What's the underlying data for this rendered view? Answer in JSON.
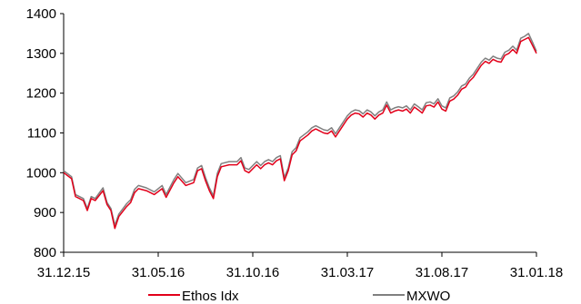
{
  "chart_data": {
    "type": "line",
    "title": "",
    "xlabel": "",
    "ylabel": "",
    "ylim": [
      800,
      1400
    ],
    "yticks": [
      800,
      900,
      1000,
      1100,
      1200,
      1300,
      1400
    ],
    "xticks": [
      "31.12.15",
      "31.05.16",
      "31.10.16",
      "31.03.17",
      "31.08.17",
      "31.01.18"
    ],
    "grid": false,
    "legend_position": "bottom",
    "series": [
      {
        "name": "Ethos Idx",
        "color": "#e2001a",
        "points": [
          [
            0,
            1000
          ],
          [
            2,
            985
          ],
          [
            3,
            940
          ],
          [
            5,
            930
          ],
          [
            6,
            905
          ],
          [
            7,
            935
          ],
          [
            8,
            930
          ],
          [
            10,
            955
          ],
          [
            11,
            920
          ],
          [
            12,
            905
          ],
          [
            13,
            860
          ],
          [
            14,
            890
          ],
          [
            16,
            915
          ],
          [
            17,
            925
          ],
          [
            18,
            950
          ],
          [
            19,
            960
          ],
          [
            21,
            955
          ],
          [
            23,
            945
          ],
          [
            25,
            960
          ],
          [
            26,
            938
          ],
          [
            28,
            975
          ],
          [
            29,
            990
          ],
          [
            31,
            968
          ],
          [
            33,
            975
          ],
          [
            34,
            1005
          ],
          [
            35,
            1010
          ],
          [
            36,
            980
          ],
          [
            37,
            955
          ],
          [
            38,
            935
          ],
          [
            39,
            990
          ],
          [
            40,
            1015
          ],
          [
            42,
            1020
          ],
          [
            44,
            1020
          ],
          [
            45,
            1030
          ],
          [
            46,
            1005
          ],
          [
            47,
            1000
          ],
          [
            49,
            1020
          ],
          [
            50,
            1010
          ],
          [
            51,
            1020
          ],
          [
            52,
            1025
          ],
          [
            53,
            1020
          ],
          [
            54,
            1030
          ],
          [
            55,
            1035
          ],
          [
            56,
            980
          ],
          [
            57,
            1005
          ],
          [
            58,
            1045
          ],
          [
            59,
            1055
          ],
          [
            60,
            1080
          ],
          [
            62,
            1095
          ],
          [
            63,
            1105
          ],
          [
            64,
            1110
          ],
          [
            65,
            1105
          ],
          [
            66,
            1100
          ],
          [
            67,
            1098
          ],
          [
            68,
            1105
          ],
          [
            69,
            1090
          ],
          [
            70,
            1105
          ],
          [
            71,
            1120
          ],
          [
            72,
            1135
          ],
          [
            73,
            1145
          ],
          [
            74,
            1150
          ],
          [
            75,
            1148
          ],
          [
            76,
            1140
          ],
          [
            77,
            1150
          ],
          [
            78,
            1145
          ],
          [
            79,
            1135
          ],
          [
            80,
            1145
          ],
          [
            81,
            1150
          ],
          [
            82,
            1170
          ],
          [
            83,
            1150
          ],
          [
            84,
            1155
          ],
          [
            85,
            1158
          ],
          [
            86,
            1155
          ],
          [
            87,
            1160
          ],
          [
            88,
            1150
          ],
          [
            89,
            1165
          ],
          [
            90,
            1158
          ],
          [
            91,
            1150
          ],
          [
            92,
            1168
          ],
          [
            93,
            1170
          ],
          [
            94,
            1165
          ],
          [
            95,
            1178
          ],
          [
            96,
            1160
          ],
          [
            97,
            1155
          ],
          [
            98,
            1180
          ],
          [
            99,
            1185
          ],
          [
            100,
            1195
          ],
          [
            101,
            1210
          ],
          [
            102,
            1215
          ],
          [
            103,
            1230
          ],
          [
            104,
            1240
          ],
          [
            105,
            1255
          ],
          [
            106,
            1270
          ],
          [
            107,
            1280
          ],
          [
            108,
            1275
          ],
          [
            109,
            1285
          ],
          [
            110,
            1280
          ],
          [
            111,
            1278
          ],
          [
            112,
            1295
          ],
          [
            113,
            1300
          ],
          [
            114,
            1310
          ],
          [
            115,
            1300
          ],
          [
            116,
            1330
          ],
          [
            117,
            1335
          ],
          [
            118,
            1340
          ],
          [
            119,
            1320
          ],
          [
            120,
            1300
          ]
        ]
      },
      {
        "name": "MXWO",
        "color": "#808080",
        "points": [
          [
            0,
            1005
          ],
          [
            2,
            990
          ],
          [
            3,
            945
          ],
          [
            5,
            935
          ],
          [
            6,
            910
          ],
          [
            7,
            940
          ],
          [
            8,
            935
          ],
          [
            10,
            962
          ],
          [
            11,
            925
          ],
          [
            12,
            910
          ],
          [
            13,
            868
          ],
          [
            14,
            896
          ],
          [
            16,
            922
          ],
          [
            17,
            932
          ],
          [
            18,
            958
          ],
          [
            19,
            968
          ],
          [
            21,
            962
          ],
          [
            23,
            952
          ],
          [
            25,
            968
          ],
          [
            26,
            945
          ],
          [
            28,
            983
          ],
          [
            29,
            998
          ],
          [
            31,
            975
          ],
          [
            33,
            983
          ],
          [
            34,
            1012
          ],
          [
            35,
            1018
          ],
          [
            36,
            988
          ],
          [
            37,
            962
          ],
          [
            38,
            942
          ],
          [
            39,
            998
          ],
          [
            40,
            1023
          ],
          [
            42,
            1028
          ],
          [
            44,
            1028
          ],
          [
            45,
            1038
          ],
          [
            46,
            1012
          ],
          [
            47,
            1008
          ],
          [
            49,
            1028
          ],
          [
            50,
            1018
          ],
          [
            51,
            1028
          ],
          [
            52,
            1033
          ],
          [
            53,
            1028
          ],
          [
            54,
            1038
          ],
          [
            55,
            1043
          ],
          [
            56,
            988
          ],
          [
            57,
            1012
          ],
          [
            58,
            1053
          ],
          [
            59,
            1063
          ],
          [
            60,
            1088
          ],
          [
            62,
            1103
          ],
          [
            63,
            1113
          ],
          [
            64,
            1118
          ],
          [
            65,
            1113
          ],
          [
            66,
            1108
          ],
          [
            67,
            1106
          ],
          [
            68,
            1113
          ],
          [
            69,
            1098
          ],
          [
            70,
            1113
          ],
          [
            71,
            1128
          ],
          [
            72,
            1143
          ],
          [
            73,
            1153
          ],
          [
            74,
            1158
          ],
          [
            75,
            1156
          ],
          [
            76,
            1148
          ],
          [
            77,
            1158
          ],
          [
            78,
            1153
          ],
          [
            79,
            1143
          ],
          [
            80,
            1153
          ],
          [
            81,
            1158
          ],
          [
            82,
            1178
          ],
          [
            83,
            1158
          ],
          [
            84,
            1163
          ],
          [
            85,
            1166
          ],
          [
            86,
            1163
          ],
          [
            87,
            1168
          ],
          [
            88,
            1158
          ],
          [
            89,
            1173
          ],
          [
            90,
            1166
          ],
          [
            91,
            1158
          ],
          [
            92,
            1176
          ],
          [
            93,
            1178
          ],
          [
            94,
            1173
          ],
          [
            95,
            1186
          ],
          [
            96,
            1168
          ],
          [
            97,
            1163
          ],
          [
            98,
            1188
          ],
          [
            99,
            1193
          ],
          [
            100,
            1203
          ],
          [
            101,
            1218
          ],
          [
            102,
            1223
          ],
          [
            103,
            1238
          ],
          [
            104,
            1248
          ],
          [
            105,
            1263
          ],
          [
            106,
            1278
          ],
          [
            107,
            1288
          ],
          [
            108,
            1283
          ],
          [
            109,
            1293
          ],
          [
            110,
            1288
          ],
          [
            111,
            1286
          ],
          [
            112,
            1303
          ],
          [
            113,
            1308
          ],
          [
            114,
            1318
          ],
          [
            115,
            1308
          ],
          [
            116,
            1338
          ],
          [
            117,
            1343
          ],
          [
            118,
            1350
          ],
          [
            119,
            1328
          ],
          [
            120,
            1305
          ]
        ]
      }
    ]
  }
}
